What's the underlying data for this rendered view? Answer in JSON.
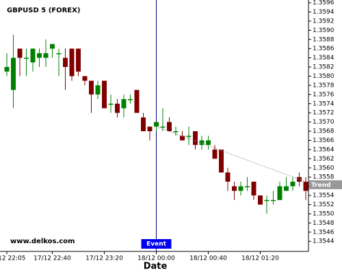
{
  "chart_data": {
    "type": "candlestick",
    "title": "GBPUSD 5 (FOREX)",
    "watermark": "www.delkos.com",
    "x_label": "Date",
    "categories": [
      "17/12 22:05",
      null,
      null,
      null,
      null,
      null,
      null,
      "17/12 22:40",
      null,
      null,
      null,
      null,
      null,
      null,
      null,
      "17/12 23:20",
      null,
      null,
      null,
      null,
      null,
      null,
      null,
      "18/12 00:00",
      null,
      null,
      null,
      null,
      null,
      null,
      null,
      "18/12 00:40",
      null,
      null,
      null,
      null,
      null,
      null,
      null,
      "18/12 01:20",
      null,
      null,
      null,
      null,
      null,
      null,
      null
    ],
    "open": [
      1.3581,
      1.3577,
      1.3586,
      1.3584,
      1.3583,
      1.3584,
      1.3584,
      1.3586,
      1.3585,
      1.3584,
      1.3586,
      1.3586,
      1.358,
      1.3579,
      1.3576,
      1.3579,
      1.3574,
      1.3574,
      1.3573,
      1.3575,
      1.3577,
      1.3571,
      1.3569,
      1.3569,
      1.3569,
      1.357,
      1.3568,
      1.3567,
      1.3567,
      1.3568,
      1.3565,
      1.3565,
      1.3564,
      1.3564,
      1.3559,
      1.3556,
      1.3555,
      1.3556,
      1.3557,
      1.3554,
      1.3553,
      1.3553,
      1.3553,
      1.3555,
      1.3556,
      1.3558,
      1.3557
    ],
    "high": [
      1.3585,
      1.3589,
      1.3586,
      1.3586,
      1.3586,
      1.3586,
      1.3588,
      1.3587,
      1.3586,
      1.3586,
      1.3586,
      1.3586,
      1.358,
      1.3579,
      1.3579,
      1.3579,
      1.3576,
      1.3575,
      1.3576,
      1.3576,
      1.3577,
      1.3572,
      1.3569,
      1.357,
      1.3573,
      1.3571,
      1.3569,
      1.3568,
      1.3569,
      1.3568,
      1.3567,
      1.3567,
      1.3565,
      1.3564,
      1.356,
      1.3557,
      1.3557,
      1.3558,
      1.3557,
      1.3554,
      1.3554,
      1.3555,
      1.3557,
      1.3558,
      1.3558,
      1.3559,
      1.3558
    ],
    "low": [
      1.358,
      1.3573,
      1.358,
      1.358,
      1.3581,
      1.3582,
      1.3582,
      1.3584,
      1.358,
      1.3577,
      1.3579,
      1.358,
      1.3578,
      1.3572,
      1.3575,
      1.3573,
      1.3572,
      1.3571,
      1.3571,
      1.3574,
      1.3572,
      1.3568,
      1.3566,
      1.3568,
      1.3568,
      1.3568,
      1.3567,
      1.3566,
      1.3565,
      1.3564,
      1.3564,
      1.3564,
      1.3562,
      1.3559,
      1.3555,
      1.3553,
      1.3554,
      1.3555,
      1.3553,
      1.3552,
      1.355,
      1.3552,
      1.3553,
      1.3555,
      1.3555,
      1.3556,
      1.3553
    ],
    "close": [
      1.3582,
      1.3584,
      1.3584,
      1.3584,
      1.3586,
      1.3585,
      1.3585,
      1.3587,
      1.3585,
      1.3582,
      1.358,
      1.3581,
      1.3579,
      1.3576,
      1.3578,
      1.3573,
      1.3574,
      1.3572,
      1.3575,
      1.3575,
      1.3572,
      1.3568,
      1.3568,
      1.357,
      1.3569,
      1.3568,
      1.3568,
      1.3566,
      1.3567,
      1.3565,
      1.3566,
      1.3566,
      1.3562,
      1.3559,
      1.3557,
      1.3555,
      1.3556,
      1.3556,
      1.3554,
      1.3552,
      1.3553,
      1.3553,
      1.3556,
      1.3556,
      1.3557,
      1.3557,
      1.3555
    ],
    "up_color": "#008000",
    "down_color": "#800000",
    "ylim": [
      1.35418,
      1.35966
    ],
    "yticks": [
      1.3544,
      1.3546,
      1.3548,
      {
        "value": 1.355,
        "label": "1.3550"
      },
      1.3552,
      1.3554,
      1.3556,
      1.3558,
      {
        "value": 1.356,
        "label": "1.3560"
      },
      1.3562,
      1.3564,
      1.3566,
      1.3568,
      {
        "value": 1.357,
        "label": "1.3570"
      },
      1.3572,
      1.3574,
      1.3576,
      1.3578,
      {
        "value": 1.358,
        "label": "1.3580"
      },
      1.3582,
      1.3584,
      1.3586,
      1.3588,
      {
        "value": 1.359,
        "label": "1.3590"
      },
      1.3592,
      1.3594,
      1.3596
    ],
    "event": {
      "label": "Event",
      "index": 23
    },
    "trend": {
      "label": "Trend",
      "from_index": 23,
      "from": 1.3569,
      "to_index": 46,
      "to": 1.3557
    }
  }
}
